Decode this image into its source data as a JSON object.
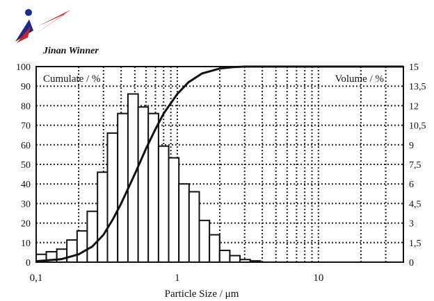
{
  "brand": {
    "name": "Jinan Winner",
    "logo_colors": [
      "#1a2a8c",
      "#d42020"
    ]
  },
  "chart_data": {
    "type": "bar",
    "x_scale": "log",
    "xlim": [
      0.1,
      40
    ],
    "xticks": [
      "0,1",
      "1",
      "10"
    ],
    "xtick_values": [
      0.1,
      1,
      10
    ],
    "xlabel": "Particle Size / μm",
    "left_axis": {
      "label": "Cumulate / %",
      "ylim": [
        0,
        100
      ],
      "ticks": [
        "0",
        "10",
        "20",
        "30",
        "40",
        "50",
        "60",
        "70",
        "80",
        "90",
        "100"
      ],
      "tick_values": [
        0,
        10,
        20,
        30,
        40,
        50,
        60,
        70,
        80,
        90,
        100
      ]
    },
    "right_axis": {
      "label": "Volume / %",
      "ylim": [
        0,
        15
      ],
      "ticks": [
        "0",
        "1,5",
        "3",
        "4,5",
        "6",
        "7,5",
        "9",
        "10,5",
        "12",
        "13,5",
        "15"
      ],
      "tick_values": [
        0,
        1.5,
        3,
        4.5,
        6,
        7.5,
        9,
        10.5,
        12,
        13.5,
        15
      ]
    },
    "grid": true,
    "series": [
      {
        "kind": "histogram",
        "axis": "right",
        "bins": [
          {
            "x0": 0.1,
            "x1": 0.118,
            "value": 0.6
          },
          {
            "x0": 0.118,
            "x1": 0.14,
            "value": 0.8
          },
          {
            "x0": 0.14,
            "x1": 0.165,
            "value": 1.0
          },
          {
            "x0": 0.165,
            "x1": 0.195,
            "value": 1.7
          },
          {
            "x0": 0.195,
            "x1": 0.23,
            "value": 2.4
          },
          {
            "x0": 0.23,
            "x1": 0.272,
            "value": 3.9
          },
          {
            "x0": 0.272,
            "x1": 0.32,
            "value": 6.9
          },
          {
            "x0": 0.32,
            "x1": 0.378,
            "value": 9.9
          },
          {
            "x0": 0.378,
            "x1": 0.447,
            "value": 11.4
          },
          {
            "x0": 0.447,
            "x1": 0.528,
            "value": 12.9
          },
          {
            "x0": 0.528,
            "x1": 0.623,
            "value": 11.9
          },
          {
            "x0": 0.623,
            "x1": 0.736,
            "value": 11.4
          },
          {
            "x0": 0.736,
            "x1": 0.869,
            "value": 8.9
          },
          {
            "x0": 0.869,
            "x1": 1.026,
            "value": 8.0
          },
          {
            "x0": 1.026,
            "x1": 1.212,
            "value": 6.0
          },
          {
            "x0": 1.212,
            "x1": 1.431,
            "value": 5.4
          },
          {
            "x0": 1.431,
            "x1": 1.69,
            "value": 3.2
          },
          {
            "x0": 1.69,
            "x1": 1.995,
            "value": 2.1
          },
          {
            "x0": 1.995,
            "x1": 2.356,
            "value": 0.9
          },
          {
            "x0": 2.356,
            "x1": 2.782,
            "value": 0.5
          },
          {
            "x0": 2.782,
            "x1": 3.285,
            "value": 0.2
          },
          {
            "x0": 3.285,
            "x1": 3.879,
            "value": 0.1
          }
        ]
      },
      {
        "kind": "line",
        "axis": "left",
        "points": [
          {
            "x": 0.1,
            "y": 0.5
          },
          {
            "x": 0.15,
            "y": 1.5
          },
          {
            "x": 0.2,
            "y": 4
          },
          {
            "x": 0.25,
            "y": 8
          },
          {
            "x": 0.3,
            "y": 14
          },
          {
            "x": 0.35,
            "y": 22
          },
          {
            "x": 0.4,
            "y": 30
          },
          {
            "x": 0.5,
            "y": 45
          },
          {
            "x": 0.6,
            "y": 58
          },
          {
            "x": 0.7,
            "y": 68
          },
          {
            "x": 0.8,
            "y": 76
          },
          {
            "x": 1.0,
            "y": 86
          },
          {
            "x": 1.2,
            "y": 92
          },
          {
            "x": 1.5,
            "y": 96.5
          },
          {
            "x": 2.0,
            "y": 99
          },
          {
            "x": 2.5,
            "y": 99.7
          },
          {
            "x": 3.0,
            "y": 100
          },
          {
            "x": 40,
            "y": 100
          }
        ]
      }
    ]
  }
}
